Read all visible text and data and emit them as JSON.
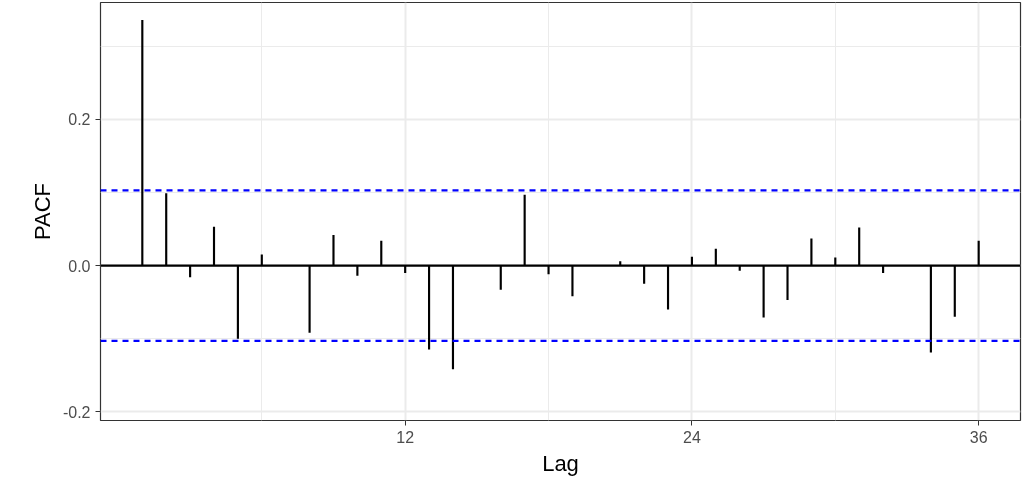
{
  "chart_data": {
    "type": "bar",
    "xlabel": "Lag",
    "ylabel": "PACF",
    "x": [
      1,
      2,
      3,
      4,
      5,
      6,
      7,
      8,
      9,
      10,
      11,
      12,
      13,
      14,
      15,
      16,
      17,
      18,
      19,
      20,
      21,
      22,
      23,
      24,
      25,
      26,
      27,
      28,
      29,
      30,
      31,
      32,
      33,
      34,
      35,
      36
    ],
    "series": [
      {
        "color": "#000000",
        "values": [
          0.336,
          0.099,
          -0.016,
          0.053,
          -0.1,
          0.015,
          null,
          -0.092,
          0.042,
          -0.014,
          0.034,
          -0.01,
          -0.115,
          -0.142,
          null,
          -0.033,
          0.097,
          -0.012,
          -0.042,
          null,
          0.006,
          -0.025,
          -0.06,
          0.012,
          0.023,
          -0.007,
          -0.071,
          -0.047,
          0.037,
          0.011,
          0.052,
          -0.01,
          null,
          -0.119,
          -0.07,
          0.034
        ]
      }
    ],
    "xlim": [
      -0.75,
      37.75
    ],
    "ylim": [
      -0.212,
      0.36
    ],
    "xticks": [
      12,
      24,
      36
    ],
    "yticks": [
      {
        "value": -0.2,
        "label": "-0.2"
      },
      {
        "value": 0,
        "label": "0.0"
      },
      {
        "value": 0.2,
        "label": "0.2"
      }
    ],
    "ref_lines": [
      {
        "axis": "y",
        "value": 0,
        "color": "#000000",
        "line_style": "solid"
      },
      {
        "axis": "y",
        "value": 0.103,
        "color": "#0000ff",
        "line_style": "dashed"
      },
      {
        "axis": "y",
        "value": -0.103,
        "color": "#0000ff",
        "line_style": "dashed"
      }
    ],
    "grid": true
  }
}
